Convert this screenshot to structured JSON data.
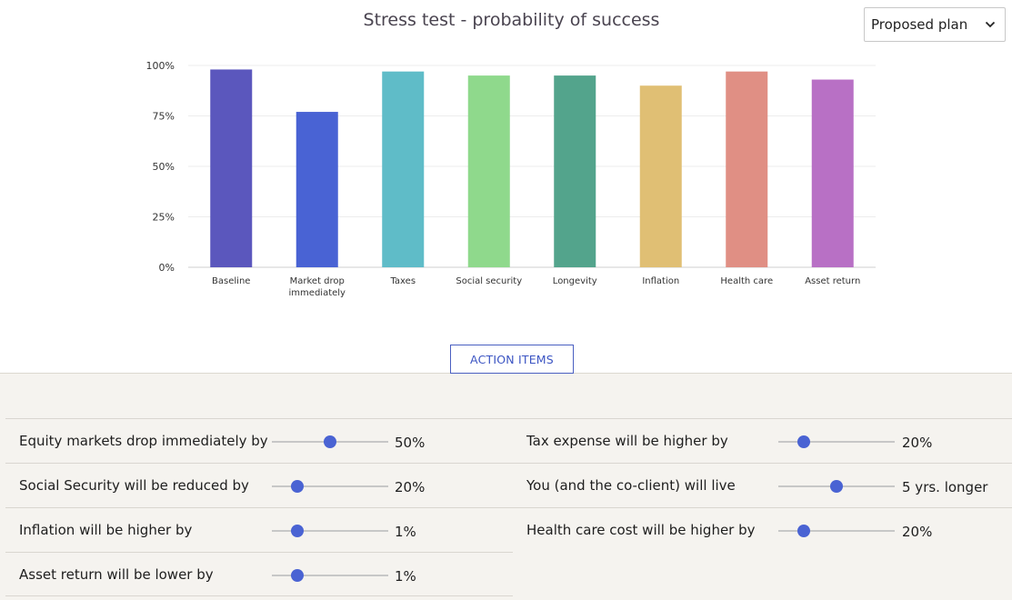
{
  "page": {
    "title": "Stress test - probability of success"
  },
  "plan_select": {
    "value": "Proposed plan",
    "icon": "chevron-down-icon"
  },
  "chart_data": {
    "type": "bar",
    "title": "Stress test - probability of success",
    "categories": [
      [
        "Baseline"
      ],
      [
        "Market drop",
        "immediately"
      ],
      [
        "Taxes"
      ],
      [
        "Social security"
      ],
      [
        "Longevity"
      ],
      [
        "Inflation"
      ],
      [
        "Health care"
      ],
      [
        "Asset return"
      ]
    ],
    "values": [
      98,
      77,
      97,
      95,
      95,
      90,
      97,
      93
    ],
    "colors": [
      "#5b57bd",
      "#4963d4",
      "#5fbcc8",
      "#8fd98c",
      "#53a48c",
      "#e0bf74",
      "#e08f84",
      "#b870c5"
    ],
    "yticks": [
      "0%",
      "25%",
      "50%",
      "75%",
      "100%"
    ],
    "ylim": [
      0,
      100
    ],
    "grid": true,
    "xlabel": "",
    "ylabel": ""
  },
  "action_items": {
    "label": "ACTION ITEMS"
  },
  "controls": {
    "left": [
      {
        "label": "Equity markets drop immediately by",
        "value": "50%",
        "level": 0.5
      },
      {
        "label": "Social Security will be reduced by",
        "value": "20%",
        "level": 0.22
      },
      {
        "label": "Inflation will be higher by",
        "value": "1%",
        "level": 0.22
      },
      {
        "label": "Asset return will be lower by",
        "value": "1%",
        "level": 0.22
      }
    ],
    "right": [
      {
        "label": "Tax expense will be higher by",
        "value": "20%",
        "level": 0.22
      },
      {
        "label": "You (and the co-client) will live",
        "value": "5 yrs. longer",
        "level": 0.5
      },
      {
        "label": "Health care cost will be higher by",
        "value": "20%",
        "level": 0.22
      }
    ]
  }
}
